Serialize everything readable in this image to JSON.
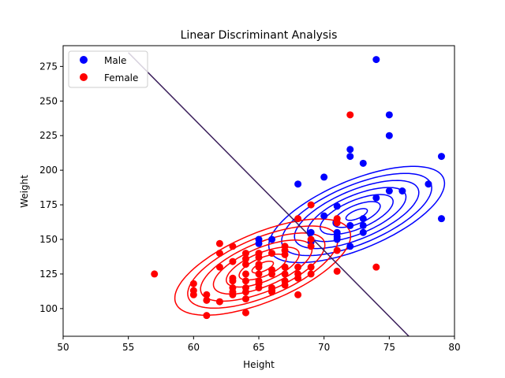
{
  "chart_data": {
    "type": "scatter",
    "title": "Linear Discriminant Analysis",
    "xlabel": "Height",
    "ylabel": "Weight",
    "xlim": [
      50,
      80
    ],
    "ylim": [
      80,
      290
    ],
    "xticks": [
      50,
      55,
      60,
      65,
      70,
      75,
      80
    ],
    "yticks": [
      100,
      125,
      150,
      175,
      200,
      225,
      250,
      275
    ],
    "legend_position": "top-left",
    "grid": false,
    "series": [
      {
        "name": "Male",
        "color": "#0000ff",
        "points": [
          [
            74,
            280
          ],
          [
            75,
            240
          ],
          [
            75,
            225
          ],
          [
            72,
            215
          ],
          [
            72,
            210
          ],
          [
            73,
            205
          ],
          [
            79,
            210
          ],
          [
            70,
            195
          ],
          [
            68,
            190
          ],
          [
            78,
            190
          ],
          [
            75,
            185
          ],
          [
            76,
            185
          ],
          [
            74,
            180
          ],
          [
            71,
            174
          ],
          [
            70,
            167
          ],
          [
            73,
            165
          ],
          [
            79,
            165
          ],
          [
            71,
            162
          ],
          [
            72,
            160
          ],
          [
            73,
            160
          ],
          [
            73,
            155
          ],
          [
            69,
            155
          ],
          [
            71,
            155
          ],
          [
            71,
            152
          ],
          [
            71,
            150
          ],
          [
            69,
            148
          ],
          [
            65,
            150
          ],
          [
            65,
            147
          ],
          [
            66,
            150
          ],
          [
            72,
            145
          ]
        ]
      },
      {
        "name": "Female",
        "color": "#ff0000",
        "points": [
          [
            72,
            240
          ],
          [
            69,
            175
          ],
          [
            68,
            165
          ],
          [
            71,
            165
          ],
          [
            71,
            162
          ],
          [
            74,
            130
          ],
          [
            71,
            142
          ],
          [
            71,
            127
          ],
          [
            69,
            145
          ],
          [
            69,
            150
          ],
          [
            57,
            125
          ],
          [
            60,
            118
          ],
          [
            60,
            113
          ],
          [
            60,
            110
          ],
          [
            61,
            110
          ],
          [
            61,
            106
          ],
          [
            61,
            95
          ],
          [
            62,
            147
          ],
          [
            62,
            140
          ],
          [
            62,
            130
          ],
          [
            62,
            105
          ],
          [
            63,
            145
          ],
          [
            63,
            134
          ],
          [
            63,
            122
          ],
          [
            63,
            120
          ],
          [
            63,
            115
          ],
          [
            63,
            112
          ],
          [
            63,
            110
          ],
          [
            64,
            140
          ],
          [
            64,
            136
          ],
          [
            64,
            132
          ],
          [
            64,
            125
          ],
          [
            64,
            120
          ],
          [
            64,
            115
          ],
          [
            64,
            112
          ],
          [
            64,
            107
          ],
          [
            64,
            97
          ],
          [
            65,
            140
          ],
          [
            65,
            137
          ],
          [
            65,
            132
          ],
          [
            65,
            130
          ],
          [
            65,
            125
          ],
          [
            65,
            120
          ],
          [
            65,
            118
          ],
          [
            65,
            115
          ],
          [
            66,
            140
          ],
          [
            66,
            128
          ],
          [
            66,
            125
          ],
          [
            66,
            115
          ],
          [
            66,
            113
          ],
          [
            66,
            112
          ],
          [
            67,
            145
          ],
          [
            67,
            142
          ],
          [
            67,
            139
          ],
          [
            67,
            130
          ],
          [
            67,
            125
          ],
          [
            67,
            120
          ],
          [
            67,
            117
          ],
          [
            68,
            130
          ],
          [
            68,
            125
          ],
          [
            68,
            122
          ],
          [
            68,
            110
          ],
          [
            69,
            125
          ],
          [
            69,
            130
          ]
        ]
      }
    ],
    "gaussian_contours": [
      {
        "series": "Male",
        "color": "#0000ff",
        "mean": [
          72.5,
          168
        ],
        "cov": [
          [
            7.5,
            25
          ],
          [
            25,
            200
          ]
        ],
        "levels": 7
      },
      {
        "series": "Female",
        "color": "#ff0000",
        "mean": [
          65.3,
          130
        ],
        "cov": [
          [
            7.5,
            25
          ],
          [
            25,
            200
          ]
        ],
        "levels": 7
      }
    ],
    "decision_boundary": {
      "color": "#3b1f5b",
      "points": [
        [
          55,
          285
        ],
        [
          76.5,
          80
        ]
      ]
    }
  }
}
